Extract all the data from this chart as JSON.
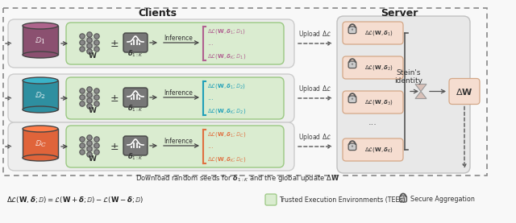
{
  "bg_color": "#f0f0f0",
  "green_bg": "#daecd0",
  "green_border": "#9ac882",
  "peach_bg": "#f5ddd0",
  "peach_border": "#d4a888",
  "server_bg": "#e8e8e8",
  "server_border": "#b0b0b0",
  "client_colors": [
    "#8b5070",
    "#2e8fa0",
    "#e0643a"
  ],
  "text_colors": [
    "#b06090",
    "#20a0b8",
    "#e07040"
  ],
  "row_labels": [
    "1",
    "2",
    "C"
  ],
  "node_color": "#888888",
  "node_edge": "#555555"
}
